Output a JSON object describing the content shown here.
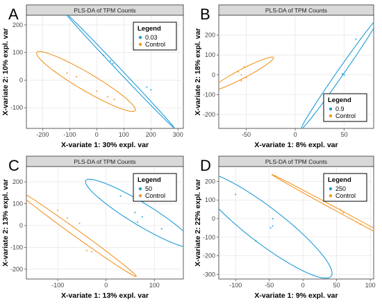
{
  "colors": {
    "blue": "#1f9bd7",
    "orange": "#f39422",
    "strip_fill": "#d9d9d9",
    "grid": "#e0e0e0",
    "axis_text": "#444444"
  },
  "chart_data": [
    {
      "type": "scatter",
      "panel_label": "A",
      "title": "PLS-DA of TPM Counts",
      "xlabel": "X-variate 1: 30% expl. var",
      "ylabel": "X-variate 2: 10% expl. var",
      "xlim": [
        -260,
        320
      ],
      "ylim": [
        -175,
        235
      ],
      "xticks": [
        -200,
        -100,
        0,
        100,
        200,
        300
      ],
      "yticks": [
        -100,
        0,
        100,
        200
      ],
      "grid": true,
      "legend_title": "Legend",
      "legend_position": "top-right",
      "series": [
        {
          "name": "0.03",
          "color": "blue",
          "ellipse": {
            "center": [
              85,
              35
            ],
            "semi_major": 290,
            "semi_minor": 6,
            "angle_deg": -46
          },
          "points": [
            {
              "x": 25,
              "y": 90,
              "label": ""
            },
            {
              "x": 50,
              "y": 70,
              "label": ""
            },
            {
              "x": 60,
              "y": 60,
              "label": ""
            },
            {
              "x": 185,
              "y": -25,
              "label": ""
            },
            {
              "x": 200,
              "y": -35,
              "label": ""
            }
          ]
        },
        {
          "name": "Control",
          "color": "orange",
          "ellipse": {
            "center": [
              -40,
              -5
            ],
            "semi_major": 210,
            "semi_minor": 32,
            "angle_deg": -30
          },
          "points": [
            {
              "x": -110,
              "y": 25,
              "label": ""
            },
            {
              "x": -75,
              "y": 12,
              "label": ""
            },
            {
              "x": 0,
              "y": -40,
              "label": ""
            },
            {
              "x": 40,
              "y": -60,
              "label": ""
            },
            {
              "x": 65,
              "y": -70,
              "label": ""
            }
          ]
        }
      ]
    },
    {
      "type": "scatter",
      "panel_label": "B",
      "title": "PLS-DA of TPM Counts",
      "xlabel": "X-variate 1: 8% expl. var",
      "ylabel": "X-variate 2: 18% expl. var",
      "xlim": [
        -78,
        80
      ],
      "ylim": [
        -270,
        300
      ],
      "xticks": [
        -50,
        0,
        50
      ],
      "yticks": [
        -200,
        -100,
        0,
        100,
        200
      ],
      "grid": true,
      "legend_title": "Legend",
      "legend_position": "bottom-right",
      "series": [
        {
          "name": "0.9",
          "color": "blue",
          "ellipse": {
            "center": [
              46,
              10
            ],
            "semi_major": 285,
            "semi_minor": 4,
            "angle_deg": 82
          },
          "points": [
            {
              "x": 62,
              "y": 180,
              "label": ""
            },
            {
              "x": 48,
              "y": 5,
              "label": ""
            },
            {
              "x": 50,
              "y": 0,
              "label": ""
            },
            {
              "x": 37,
              "y": -115,
              "label": ""
            },
            {
              "x": 34,
              "y": -150,
              "label": ""
            }
          ]
        },
        {
          "name": "Control",
          "color": "orange",
          "ellipse": {
            "center": [
              -54,
              5
            ],
            "semi_major": 90,
            "semi_minor": 9,
            "angle_deg": 70
          },
          "points": [
            {
              "x": -52,
              "y": 40,
              "label": ""
            },
            {
              "x": -58,
              "y": 15,
              "label": ""
            },
            {
              "x": -55,
              "y": 0,
              "label": ""
            },
            {
              "x": -50,
              "y": -15,
              "label": ""
            },
            {
              "x": -55,
              "y": -30,
              "label": ""
            }
          ]
        }
      ]
    },
    {
      "type": "scatter",
      "panel_label": "C",
      "title": "PLS-DA of TPM Counts",
      "xlabel": "X-variate 1: 13% expl. var",
      "ylabel": "X-variate 2: 13% expl. var",
      "xlim": [
        -165,
        160
      ],
      "ylim": [
        -245,
        270
      ],
      "xticks": [
        -100,
        0,
        100
      ],
      "yticks": [
        -200,
        -100,
        0,
        100,
        200
      ],
      "grid": true,
      "legend_title": "Legend",
      "legend_position": "top-right",
      "series": [
        {
          "name": "50",
          "color": "blue",
          "ellipse": {
            "center": [
              70,
              55
            ],
            "semi_major": 190,
            "semi_minor": 35,
            "angle_deg": -55
          },
          "points": [
            {
              "x": 30,
              "y": 135,
              "label": ""
            },
            {
              "x": 60,
              "y": 60,
              "label": ""
            },
            {
              "x": 75,
              "y": 40,
              "label": ""
            },
            {
              "x": 65,
              "y": 15,
              "label": ""
            },
            {
              "x": 115,
              "y": -15,
              "label": ""
            }
          ]
        },
        {
          "name": "Control",
          "color": "orange",
          "ellipse": {
            "center": [
              -65,
              -30
            ],
            "semi_major": 240,
            "semi_minor": 10,
            "angle_deg": -58
          },
          "points": [
            {
              "x": -100,
              "y": 70,
              "label": ""
            },
            {
              "x": -80,
              "y": 35,
              "label": ""
            },
            {
              "x": -55,
              "y": 10,
              "label": ""
            },
            {
              "x": -40,
              "y": -115,
              "label": ""
            },
            {
              "x": -30,
              "y": -120,
              "label": ""
            }
          ]
        }
      ]
    },
    {
      "type": "scatter",
      "panel_label": "D",
      "title": "PLS-DA of TPM Counts",
      "xlabel": "X-variate 1: 9% expl. var",
      "ylabel": "X-variate 2: 22% expl. var",
      "xlim": [
        -125,
        105
      ],
      "ylim": [
        -325,
        280
      ],
      "xticks": [
        -100,
        -50,
        0,
        50,
        100
      ],
      "yticks": [
        -300,
        -200,
        -100,
        0,
        100,
        200
      ],
      "grid": true,
      "legend_title": "Legend",
      "legend_position": "top-right",
      "series": [
        {
          "name": "250",
          "color": "blue",
          "ellipse": {
            "center": [
              -57,
              -35
            ],
            "semi_major": 300,
            "semi_minor": 40,
            "angle_deg": -72
          },
          "points": [
            {
              "x": -100,
              "y": 130,
              "label": ""
            },
            {
              "x": -45,
              "y": 0,
              "label": ""
            },
            {
              "x": -45,
              "y": -40,
              "label": ""
            },
            {
              "x": -48,
              "y": -50,
              "label": ""
            },
            {
              "x": -70,
              "y": -120,
              "label": ""
            }
          ]
        },
        {
          "name": "Control",
          "color": "orange",
          "ellipse": {
            "center": [
              63,
              23
            ],
            "semi_major": 240,
            "semi_minor": 4,
            "angle_deg": -63
          },
          "points": [
            {
              "x": 55,
              "y": 50,
              "label": ""
            },
            {
              "x": 58,
              "y": 40,
              "label": ""
            },
            {
              "x": 60,
              "y": 30,
              "label": ""
            },
            {
              "x": 80,
              "y": -20,
              "label": ""
            },
            {
              "x": 85,
              "y": -30,
              "label": ""
            }
          ]
        }
      ]
    }
  ]
}
